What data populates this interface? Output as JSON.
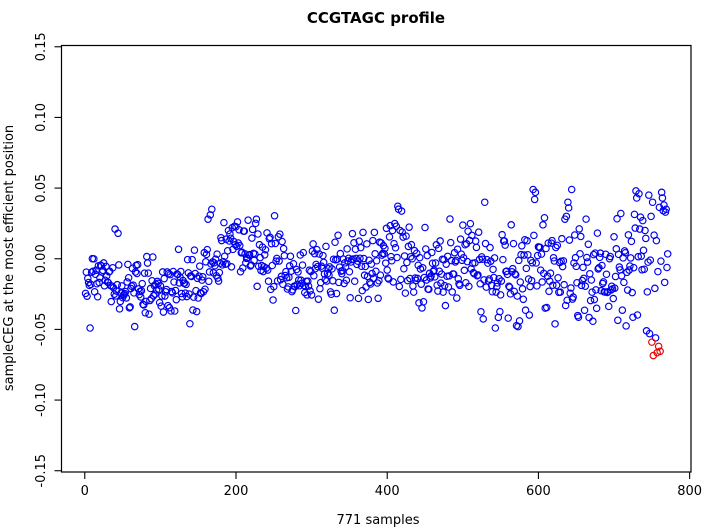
{
  "chart_data": {
    "type": "scatter",
    "title": "CCGTAGC profile",
    "xlabel": "771 samples",
    "ylabel": "sampleCEG at the most efficient position",
    "n_points": 771,
    "x_is_sample_index": true,
    "xlim": [
      -30.8,
      801.8
    ],
    "ylim": [
      -0.1509,
      0.1509
    ],
    "grid": false,
    "legend": null,
    "x_ticks": {
      "values": [
        0,
        200,
        400,
        600,
        800
      ],
      "labels": [
        "0",
        "200",
        "400",
        "600",
        "800"
      ]
    },
    "y_ticks": {
      "values": [
        -0.15,
        -0.1,
        -0.05,
        0.0,
        0.05,
        0.1,
        0.15
      ],
      "labels": [
        "-0.15",
        "-0.10",
        "-0.05",
        "0.00",
        "0.05",
        "0.10",
        "0.15"
      ]
    },
    "colors": {
      "points": "#0000EE",
      "outliers": "#E60000",
      "axis": "#000000",
      "background": "#FFFFFF"
    },
    "marker": {
      "shape": "open-circle",
      "radius_px": 3.2,
      "stroke_width": 1.15
    },
    "distribution_model": {
      "seed": 42,
      "mean_nodes": [
        [
          1,
          -0.014
        ],
        [
          30,
          -0.013
        ],
        [
          60,
          -0.019
        ],
        [
          100,
          -0.022
        ],
        [
          140,
          -0.018
        ],
        [
          165,
          -0.006
        ],
        [
          190,
          0.007
        ],
        [
          215,
          0.01
        ],
        [
          240,
          0.002
        ],
        [
          260,
          -0.008
        ],
        [
          290,
          -0.016
        ],
        [
          320,
          -0.011
        ],
        [
          350,
          -0.005
        ],
        [
          380,
          -0.003
        ],
        [
          405,
          0.005
        ],
        [
          425,
          0.001
        ],
        [
          450,
          -0.009
        ],
        [
          470,
          -0.017
        ],
        [
          495,
          -0.01
        ],
        [
          515,
          -0.003
        ],
        [
          540,
          -0.013
        ],
        [
          565,
          -0.019
        ],
        [
          590,
          -0.009
        ],
        [
          615,
          -0.013
        ],
        [
          640,
          -0.009
        ],
        [
          662,
          -0.018
        ],
        [
          685,
          -0.009
        ],
        [
          708,
          -0.013
        ],
        [
          728,
          -0.001
        ],
        [
          748,
          -0.006
        ],
        [
          771,
          -0.008
        ]
      ],
      "sd_base": 0.011,
      "sd_growth": 0.011,
      "heavy_tail_prob": 0.05,
      "heavy_tail_sd": 0.012,
      "y_clamp": [
        -0.049,
        0.046
      ]
    },
    "notable_points_blue": [
      [
        40,
        0.021
      ],
      [
        44,
        0.018
      ],
      [
        66,
        -0.048
      ],
      [
        139,
        -0.046
      ],
      [
        163,
        0.028
      ],
      [
        166,
        0.031
      ],
      [
        168,
        0.035
      ],
      [
        190,
        0.02
      ],
      [
        195,
        0.022
      ],
      [
        198,
        0.023
      ],
      [
        407,
        0.02
      ],
      [
        412,
        0.023
      ],
      [
        417,
        0.02
      ],
      [
        425,
        0.016
      ],
      [
        529,
        0.04
      ],
      [
        560,
        -0.042
      ],
      [
        564,
        0.024
      ],
      [
        573,
        -0.048
      ],
      [
        593,
        0.049
      ],
      [
        595,
        0.042
      ],
      [
        596,
        0.047
      ],
      [
        606,
        0.024
      ],
      [
        608,
        0.029
      ],
      [
        635,
        0.028
      ],
      [
        637,
        0.03
      ],
      [
        639,
        0.04
      ],
      [
        640,
        0.036
      ],
      [
        644,
        0.049
      ],
      [
        729,
        0.048
      ],
      [
        730,
        0.043
      ],
      [
        733,
        0.046
      ],
      [
        734,
        0.021
      ],
      [
        738,
        0.027
      ],
      [
        741,
        0.02
      ],
      [
        743,
        -0.051
      ],
      [
        746,
        0.045
      ],
      [
        747,
        -0.053
      ],
      [
        749,
        0.03
      ],
      [
        751,
        0.04
      ],
      [
        755,
        -0.056
      ],
      [
        763,
        0.047
      ],
      [
        764,
        0.043
      ],
      [
        765,
        0.034
      ],
      [
        766,
        0.038
      ],
      [
        768,
        0.033
      ],
      [
        769,
        0.035
      ]
    ],
    "highlighted_points_red": [
      [
        750,
        -0.059
      ],
      [
        759,
        -0.062
      ],
      [
        757,
        -0.0665
      ],
      [
        761,
        -0.0655
      ],
      [
        752,
        -0.0685
      ]
    ]
  }
}
